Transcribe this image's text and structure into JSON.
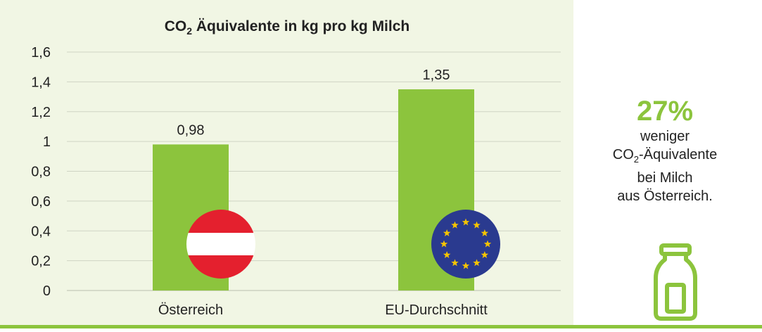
{
  "colors": {
    "bar": "#8cc43d",
    "accent": "#8cc43d",
    "panel": "#f1f6e4",
    "grid": "#cfd4c4",
    "text": "#222222",
    "at_red": "#e4202e",
    "eu_blue": "#2a3a8f",
    "eu_star": "#f5c400"
  },
  "chart_data": {
    "type": "bar",
    "title_main": "CO",
    "title_sub": "2",
    "title_rest": " Äquivalente in kg pro kg Milch",
    "categories": [
      "Österreich",
      "EU-Durchschnitt"
    ],
    "values": [
      0.98,
      1.35
    ],
    "value_labels": [
      "0,98",
      "1,35"
    ],
    "ylim": [
      0,
      1.6
    ],
    "yticks": [
      0,
      0.2,
      0.4,
      0.6,
      0.8,
      1,
      1.2,
      1.4,
      1.6
    ],
    "ytick_labels": [
      "0",
      "0,2",
      "0,4",
      "0,6",
      "0,8",
      "1",
      "1,2",
      "1,4",
      "1,6"
    ],
    "grid": true,
    "bar_icons": [
      "austria-flag-icon",
      "eu-flag-icon"
    ]
  },
  "side": {
    "percent": "27%",
    "line1": "weniger",
    "line2_main": "CO",
    "line2_sub": "2",
    "line2_rest": "-Äquivalente",
    "line3": "bei Milch",
    "line4": "aus Österreich.",
    "icon": "milk-bottle-icon"
  }
}
